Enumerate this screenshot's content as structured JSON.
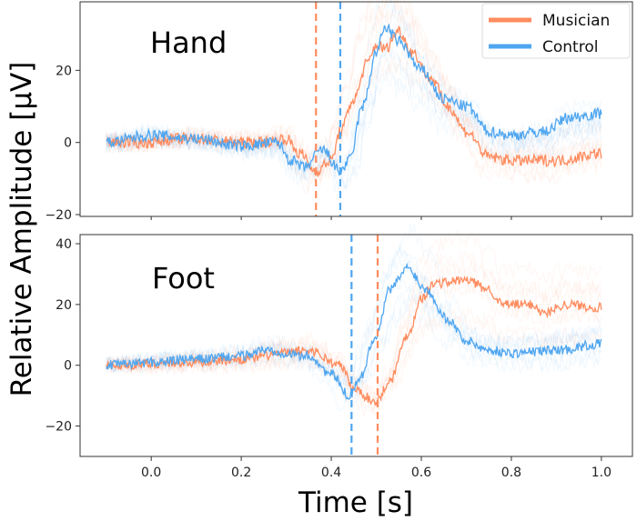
{
  "chart_data": [
    {
      "type": "line",
      "title": "Hand",
      "xlabel": "Time [s]",
      "ylabel": "Relative Amplitude [μV]",
      "xlim": [
        -0.158,
        1.069
      ],
      "ylim": [
        -20.5,
        39
      ],
      "xticks": [
        "0.0",
        "0.2",
        "0.4",
        "0.6",
        "0.8",
        "1.0"
      ],
      "yticks": [
        "−20",
        "0",
        "20"
      ],
      "ytick_values": [
        -20,
        0,
        20
      ],
      "grid": false,
      "legend": {
        "placement": "top-right",
        "entries": [
          "Musician",
          "Control"
        ]
      },
      "vlines": [
        {
          "series": "Musician",
          "x": 0.366
        },
        {
          "series": "Control",
          "x": 0.42
        }
      ],
      "series": [
        {
          "name": "Musician",
          "color": "#ff8c5f",
          "x": [
            -0.1,
            0.0,
            0.05,
            0.1,
            0.2,
            0.25,
            0.3,
            0.33,
            0.365,
            0.4,
            0.42,
            0.45,
            0.48,
            0.5,
            0.52,
            0.55,
            0.58,
            0.62,
            0.66,
            0.7,
            0.75,
            0.8,
            0.9,
            1.0
          ],
          "y": [
            0,
            0,
            1,
            1,
            0,
            0,
            1,
            -3,
            -8,
            -5,
            3,
            12,
            22,
            27,
            26,
            31,
            25,
            18,
            10,
            3,
            -4,
            -5,
            -5,
            -3
          ]
        },
        {
          "name": "Control",
          "color": "#4fa6f0",
          "x": [
            -0.1,
            0.0,
            0.1,
            0.2,
            0.28,
            0.31,
            0.34,
            0.38,
            0.42,
            0.44,
            0.47,
            0.5,
            0.52,
            0.55,
            0.6,
            0.65,
            0.7,
            0.75,
            0.8,
            0.87,
            0.93,
            1.0
          ],
          "y": [
            0,
            2,
            1,
            -1,
            0,
            -5,
            -7,
            -2,
            -8,
            -5,
            10,
            25,
            32,
            28,
            20,
            12,
            10,
            3,
            2,
            3,
            7,
            8
          ]
        }
      ]
    },
    {
      "type": "line",
      "title": "Foot",
      "xlabel": "Time [s]",
      "ylabel": "Relative Amplitude [μV]",
      "xlim": [
        -0.158,
        1.069
      ],
      "ylim": [
        -30,
        43
      ],
      "xticks": [
        "0.0",
        "0.2",
        "0.4",
        "0.6",
        "0.8",
        "1.0"
      ],
      "yticks": [
        "−20",
        "0",
        "20",
        "40"
      ],
      "ytick_values": [
        -20,
        0,
        20,
        40
      ],
      "grid": false,
      "vlines": [
        {
          "series": "Control",
          "x": 0.445
        },
        {
          "series": "Musician",
          "x": 0.503
        }
      ],
      "series": [
        {
          "name": "Musician",
          "color": "#ff8c5f",
          "x": [
            -0.1,
            0.1,
            0.2,
            0.3,
            0.35,
            0.42,
            0.45,
            0.5,
            0.53,
            0.57,
            0.6,
            0.63,
            0.7,
            0.75,
            0.78,
            0.85,
            0.87,
            0.92,
            1.0
          ],
          "y": [
            0,
            1,
            2,
            4,
            5,
            0,
            -8,
            -12,
            -5,
            10,
            22,
            27,
            28,
            25,
            20,
            20,
            17,
            20,
            19
          ]
        },
        {
          "name": "Control",
          "color": "#4fa6f0",
          "x": [
            -0.1,
            0.0,
            0.1,
            0.2,
            0.25,
            0.35,
            0.4,
            0.44,
            0.46,
            0.5,
            0.53,
            0.57,
            0.61,
            0.66,
            0.7,
            0.75,
            0.8,
            0.9,
            1.0
          ],
          "y": [
            0,
            1,
            2,
            3,
            5,
            3,
            -3,
            -10,
            -5,
            10,
            25,
            32,
            25,
            15,
            8,
            5,
            4,
            5,
            7
          ]
        }
      ]
    }
  ]
}
